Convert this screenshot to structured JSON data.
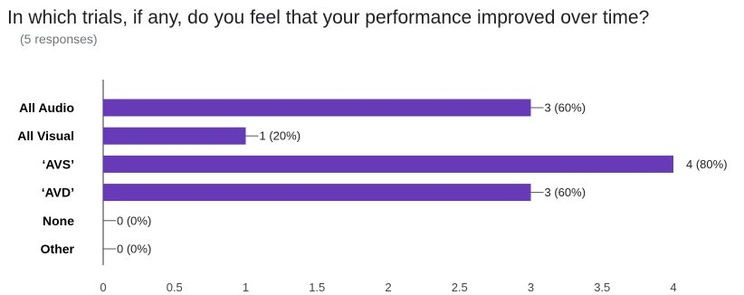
{
  "title": "In which trials, if any, do you feel that your performance improved over time?",
  "subtitle": "(5 responses)",
  "chart_data": {
    "type": "bar",
    "orientation": "horizontal",
    "categories": [
      "All Audio",
      "All Visual",
      "‘AVS’",
      "‘AVD’",
      "None",
      "Other"
    ],
    "values": [
      3,
      1,
      4,
      3,
      0,
      0
    ],
    "data_labels": [
      "3 (60%)",
      "1 (20%)",
      "4 (80%)",
      "3 (60%)",
      "0 (0%)",
      "0 (0%)"
    ],
    "x_ticks": [
      "0",
      "0.5",
      "1",
      "1.5",
      "2",
      "2.5",
      "3",
      "3.5",
      "4"
    ],
    "xlim": [
      0,
      4
    ],
    "bar_color": "#673ab7",
    "grid": false,
    "legend": "none"
  }
}
